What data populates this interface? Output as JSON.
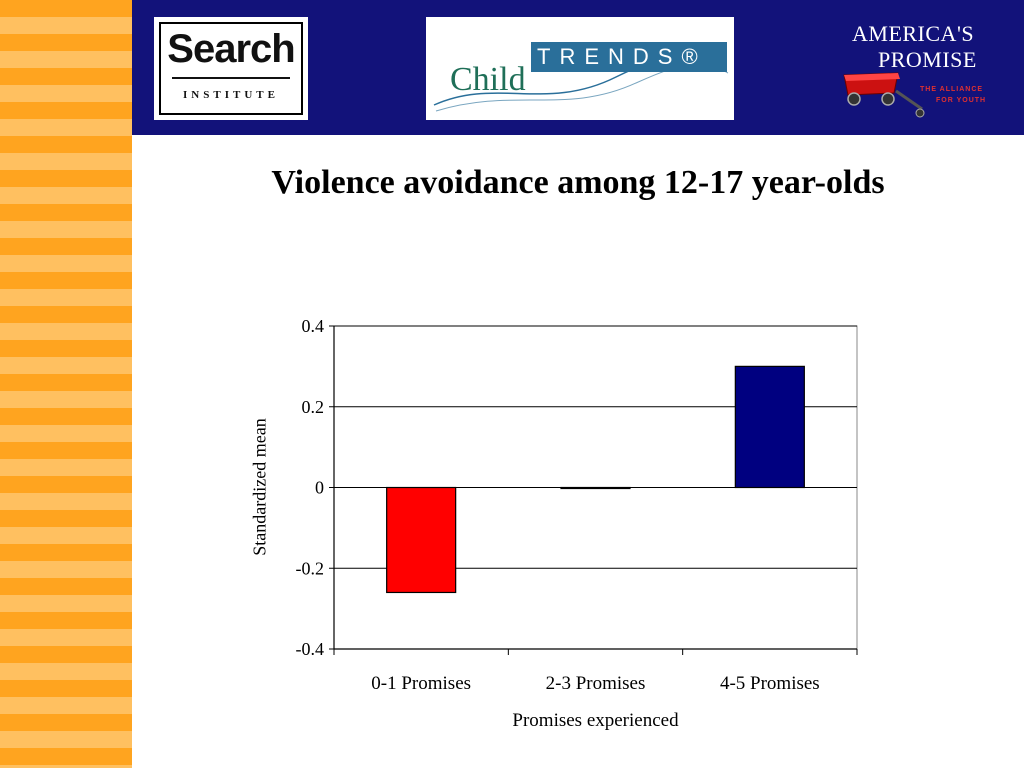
{
  "header": {
    "search_logo": {
      "word": "Search",
      "sub": "INSTITUTE"
    },
    "childtrends_logo": {
      "child": "Child",
      "trends": "TRENDS®"
    },
    "americas_promise_logo": {
      "line1": "AMERICA'S",
      "line2": "PROMISE",
      "tag1": "THE ALLIANCE",
      "tag2": "FOR YOUTH"
    }
  },
  "colors": {
    "header_bg": "#12127a",
    "stripe_dark": "#ffa41f",
    "stripe_light": "#ffc060"
  },
  "chart_data": {
    "type": "bar",
    "title": "Violence avoidance among 12-17 year-olds",
    "xlabel": "Promises experienced",
    "ylabel": "Standardized mean",
    "categories": [
      "0-1 Promises",
      "2-3 Promises",
      "4-5 Promises"
    ],
    "values": [
      -0.26,
      0.0,
      0.3
    ],
    "bar_colors": [
      "#ff0000",
      "#ffff00",
      "#000080"
    ],
    "ylim": [
      -0.4,
      0.4
    ],
    "yticks": [
      "0.4",
      "0.2",
      "0",
      "-0.2",
      "-0.4"
    ],
    "ytick_values": [
      0.4,
      0.2,
      0,
      -0.2,
      -0.4
    ],
    "grid": true,
    "legend": "none"
  }
}
